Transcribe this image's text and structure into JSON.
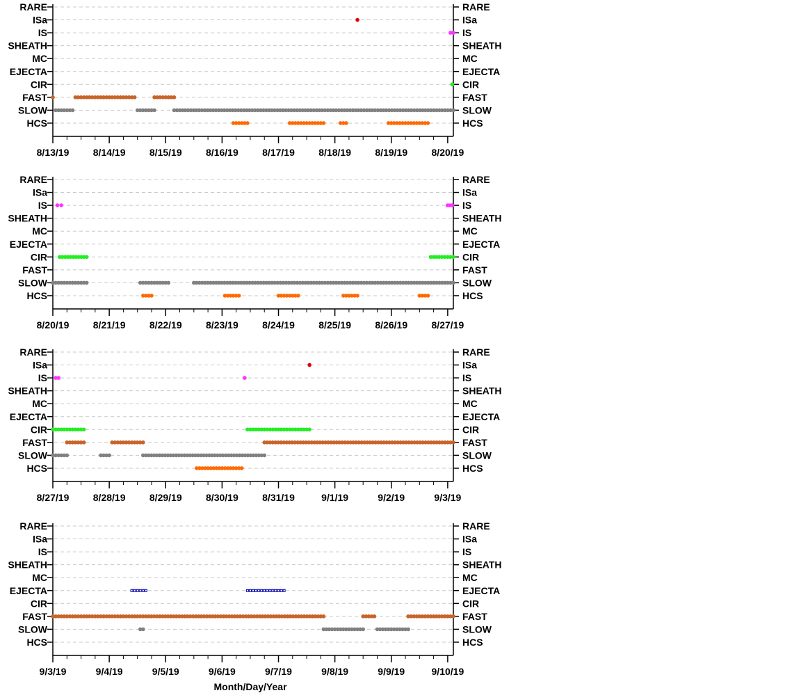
{
  "chart_data": {
    "type": "scatter",
    "xlabel": "Month/Day/Year",
    "categories": [
      "RARE",
      "ISa",
      "IS",
      "SHEATH",
      "MC",
      "EJECTA",
      "CIR",
      "FAST",
      "SLOW",
      "HCS"
    ],
    "colors": {
      "ISa": "#dd0000",
      "IS": "#ff33ff",
      "CIR": "#22ee22",
      "FAST": "#c8642a",
      "SLOW": "#808080",
      "HCS": "#ff6a00",
      "EJECTA": "#0000aa"
    },
    "panels": [
      {
        "x_range_days": [
          0,
          7.1
        ],
        "ticks": [
          "8/13/19",
          "8/14/19",
          "8/15/19",
          "8/16/19",
          "8/17/19",
          "8/18/19",
          "8/19/19",
          "8/20/19"
        ],
        "segments": [
          {
            "cat": "FAST",
            "start": 0.0,
            "end": 0.02
          },
          {
            "cat": "FAST",
            "start": 0.4,
            "end": 1.45
          },
          {
            "cat": "FAST",
            "start": 1.8,
            "end": 2.15
          },
          {
            "cat": "SLOW",
            "start": 0.05,
            "end": 0.35
          },
          {
            "cat": "SLOW",
            "start": 1.5,
            "end": 1.8
          },
          {
            "cat": "SLOW",
            "start": 2.15,
            "end": 7.1
          },
          {
            "cat": "HCS",
            "start": 3.2,
            "end": 3.45
          },
          {
            "cat": "HCS",
            "start": 4.2,
            "end": 4.8
          },
          {
            "cat": "HCS",
            "start": 5.1,
            "end": 5.2
          },
          {
            "cat": "HCS",
            "start": 5.95,
            "end": 6.65
          },
          {
            "cat": "ISa",
            "start": 5.4,
            "end": 5.4
          },
          {
            "cat": "IS",
            "start": 7.05,
            "end": 7.1
          },
          {
            "cat": "CIR",
            "start": 7.08,
            "end": 7.1
          }
        ]
      },
      {
        "x_range_days": [
          0,
          7.1
        ],
        "ticks": [
          "8/20/19",
          "8/21/19",
          "8/22/19",
          "8/23/19",
          "8/24/19",
          "8/25/19",
          "8/26/19",
          "8/27/19"
        ],
        "segments": [
          {
            "cat": "IS",
            "start": 0.08,
            "end": 0.15
          },
          {
            "cat": "IS",
            "start": 7.0,
            "end": 7.08
          },
          {
            "cat": "CIR",
            "start": 0.12,
            "end": 0.6
          },
          {
            "cat": "CIR",
            "start": 6.7,
            "end": 7.1
          },
          {
            "cat": "SLOW",
            "start": 0.0,
            "end": 0.6
          },
          {
            "cat": "SLOW",
            "start": 1.55,
            "end": 2.05
          },
          {
            "cat": "SLOW",
            "start": 2.5,
            "end": 7.1
          },
          {
            "cat": "HCS",
            "start": 1.6,
            "end": 1.75
          },
          {
            "cat": "HCS",
            "start": 3.05,
            "end": 3.3
          },
          {
            "cat": "HCS",
            "start": 4.0,
            "end": 4.35
          },
          {
            "cat": "HCS",
            "start": 5.15,
            "end": 5.4
          },
          {
            "cat": "HCS",
            "start": 6.5,
            "end": 6.65
          }
        ]
      },
      {
        "x_range_days": [
          0,
          7.1
        ],
        "ticks": [
          "8/27/19",
          "8/28/19",
          "8/29/19",
          "8/30/19",
          "8/31/19",
          "9/1/19",
          "9/2/19",
          "9/3/19"
        ],
        "segments": [
          {
            "cat": "IS",
            "start": 0.05,
            "end": 0.1
          },
          {
            "cat": "IS",
            "start": 3.4,
            "end": 3.4
          },
          {
            "cat": "ISa",
            "start": 4.55,
            "end": 4.55
          },
          {
            "cat": "CIR",
            "start": 0.0,
            "end": 0.55
          },
          {
            "cat": "CIR",
            "start": 3.45,
            "end": 4.55
          },
          {
            "cat": "FAST",
            "start": 0.25,
            "end": 0.55
          },
          {
            "cat": "FAST",
            "start": 1.05,
            "end": 1.6
          },
          {
            "cat": "FAST",
            "start": 3.75,
            "end": 7.1
          },
          {
            "cat": "SLOW",
            "start": 0.0,
            "end": 0.25
          },
          {
            "cat": "SLOW",
            "start": 0.85,
            "end": 1.0
          },
          {
            "cat": "SLOW",
            "start": 1.6,
            "end": 3.75
          },
          {
            "cat": "HCS",
            "start": 2.55,
            "end": 3.35
          }
        ]
      },
      {
        "x_range_days": [
          0,
          7.1
        ],
        "ticks": [
          "9/3/19",
          "9/4/19",
          "9/5/19",
          "9/6/19",
          "9/7/19",
          "9/8/19",
          "9/9/19",
          "9/10/19"
        ],
        "segments": [
          {
            "cat": "EJECTA",
            "start": 1.4,
            "end": 1.65
          },
          {
            "cat": "EJECTA",
            "start": 3.45,
            "end": 4.1
          },
          {
            "cat": "FAST",
            "start": 0.0,
            "end": 1.55
          },
          {
            "cat": "FAST",
            "start": 1.6,
            "end": 4.8
          },
          {
            "cat": "FAST",
            "start": 5.5,
            "end": 5.7
          },
          {
            "cat": "FAST",
            "start": 6.3,
            "end": 7.1
          },
          {
            "cat": "SLOW",
            "start": 1.55,
            "end": 1.6
          },
          {
            "cat": "SLOW",
            "start": 4.8,
            "end": 5.5
          },
          {
            "cat": "SLOW",
            "start": 5.75,
            "end": 6.3
          }
        ]
      }
    ]
  }
}
